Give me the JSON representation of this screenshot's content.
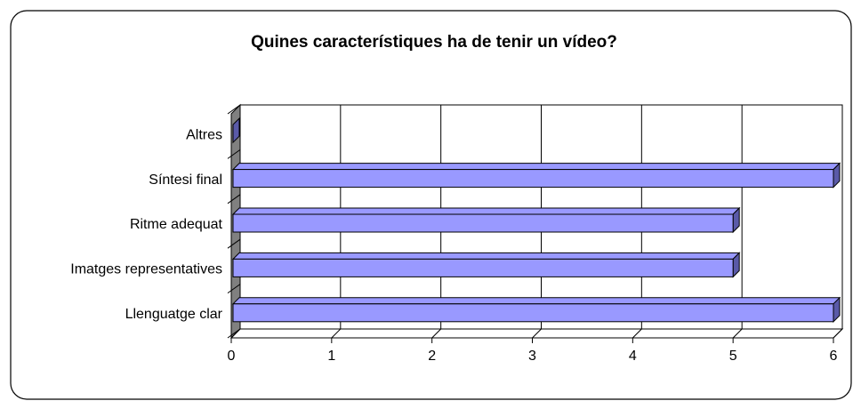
{
  "chart_data": {
    "type": "bar3d_horizontal",
    "title": "Quines característiques ha de tenir un vídeo?",
    "categories": [
      "Llenguatge clar",
      "Imatges representatives",
      "Ritme adequat",
      "Síntesi final",
      "Altres"
    ],
    "values": [
      6,
      5,
      5,
      6,
      0
    ],
    "color": "#9999ff",
    "xlim": [
      0,
      6
    ],
    "xticks": [
      0,
      1,
      2,
      3,
      4,
      5,
      6
    ],
    "grid": true
  }
}
